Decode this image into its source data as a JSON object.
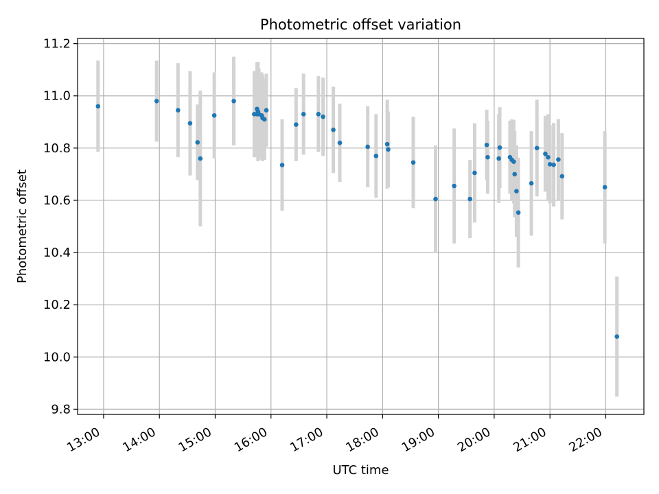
{
  "chart_data": {
    "type": "scatter",
    "title": "Photometric offset variation",
    "xlabel": "UTC time",
    "ylabel": "Photometric offset",
    "grid": true,
    "xlim": [
      "12:32",
      "22:41"
    ],
    "ylim": [
      9.78,
      11.22
    ],
    "x_ticks": [
      "13:00",
      "14:00",
      "15:00",
      "16:00",
      "17:00",
      "18:00",
      "19:00",
      "20:00",
      "21:00",
      "22:00"
    ],
    "y_ticks": [
      "9.8",
      "10.0",
      "10.2",
      "10.4",
      "10.6",
      "10.8",
      "11.0",
      "11.2"
    ],
    "marker_color": "#1f77b4",
    "errorbar_color": "#d3d3d3",
    "series": [
      {
        "x": [
          "12:54",
          "13:57",
          "14:20",
          "14:33",
          "14:41",
          "14:44",
          "14:59",
          "15:20",
          "15:42",
          "15:45",
          "15:45",
          "15:46",
          "15:47",
          "15:50",
          "15:51",
          "15:53",
          "15:55",
          "16:12",
          "16:27",
          "16:35",
          "16:51",
          "16:56",
          "17:07",
          "17:14",
          "17:44",
          "17:53",
          "18:05",
          "18:06",
          "18:33",
          "18:57",
          "19:17",
          "19:34",
          "19:39",
          "19:52",
          "19:53",
          "20:05",
          "20:06",
          "20:17",
          "20:19",
          "20:21",
          "20:22",
          "20:24",
          "20:26",
          "20:40",
          "20:46",
          "20:55",
          "20:58",
          "21:00",
          "21:04",
          "21:09",
          "21:13"
        ],
        "y": [
          10.96,
          10.98,
          10.945,
          10.895,
          10.822,
          10.76,
          10.925,
          10.98,
          10.93,
          10.93,
          10.95,
          10.94,
          10.93,
          10.925,
          10.915,
          10.91,
          10.945,
          10.735,
          10.89,
          10.93,
          10.93,
          10.92,
          10.87,
          10.82,
          10.805,
          10.77,
          10.815,
          10.795,
          10.745,
          10.605,
          10.655,
          10.605,
          10.705,
          10.812,
          10.765,
          10.76,
          10.802,
          10.765,
          10.755,
          10.748,
          10.7,
          10.635,
          10.553,
          10.665,
          10.8,
          10.778,
          10.765,
          10.738,
          10.736,
          10.756,
          10.692
        ],
        "error": [
          0.175,
          0.155,
          0.18,
          0.2,
          0.145,
          0.26,
          0.165,
          0.17,
          0.165,
          0.165,
          0.18,
          0.19,
          0.175,
          0.165,
          0.165,
          0.155,
          0.14,
          0.175,
          0.14,
          0.155,
          0.145,
          0.15,
          0.165,
          0.15,
          0.155,
          0.16,
          0.17,
          0.145,
          0.175,
          0.205,
          0.22,
          0.15,
          0.19,
          0.135,
          0.14,
          0.17,
          0.155,
          0.14,
          0.155,
          0.16,
          0.165,
          0.175,
          0.21,
          0.2,
          0.185,
          0.145,
          0.165,
          0.15,
          0.16,
          0.155,
          0.165
        ]
      },
      {
        "x": [
          "21:59",
          "22:12"
        ],
        "y": [
          10.65,
          10.078
        ],
        "error": [
          0.215,
          0.23
        ]
      }
    ]
  }
}
